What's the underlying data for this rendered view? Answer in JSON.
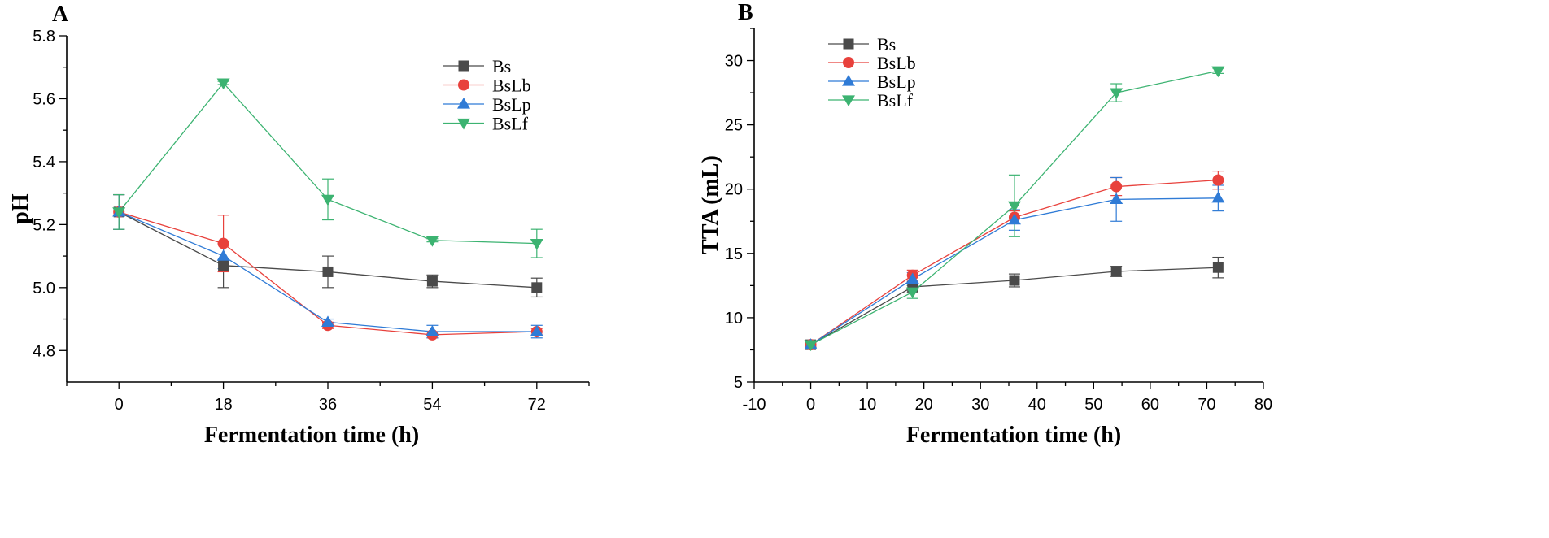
{
  "chart_data": [
    {
      "id": "A",
      "type": "line",
      "panel_label": "A",
      "title": "",
      "xlabel": "Fermentation time (h)",
      "ylabel": "pH",
      "xlim": [
        -9,
        81
      ],
      "ylim": [
        4.7,
        5.8
      ],
      "xticks": [
        0,
        18,
        36,
        54,
        72
      ],
      "xtick_labels": [
        "0",
        "18",
        "36",
        "54",
        "72"
      ],
      "yticks": [
        4.8,
        5.0,
        5.2,
        5.4,
        5.6,
        5.8
      ],
      "ytick_labels": [
        "4.8",
        "5.0",
        "5.2",
        "5.4",
        "5.6",
        "5.8"
      ],
      "legend_position": "top-right",
      "series": [
        {
          "name": "Bs",
          "color": "#4a4a4a",
          "marker": "square",
          "x": [
            0,
            18,
            36,
            54,
            72
          ],
          "values": [
            5.24,
            5.07,
            5.05,
            5.02,
            5.0
          ],
          "err": [
            0.055,
            0.07,
            0.05,
            0.02,
            0.03
          ]
        },
        {
          "name": "BsLb",
          "color": "#e8413c",
          "marker": "circle",
          "x": [
            0,
            18,
            36,
            54,
            72
          ],
          "values": [
            5.24,
            5.14,
            4.88,
            4.85,
            4.86
          ],
          "err": [
            0.055,
            0.09,
            0.01,
            0.01,
            0.01
          ]
        },
        {
          "name": "BsLp",
          "color": "#2f7bd6",
          "marker": "triangle-up",
          "x": [
            0,
            18,
            36,
            54,
            72
          ],
          "values": [
            5.24,
            5.1,
            4.89,
            4.86,
            4.86
          ],
          "err": [
            0.055,
            0.04,
            0.01,
            0.02,
            0.02
          ]
        },
        {
          "name": "BsLf",
          "color": "#3cb371",
          "marker": "triangle-down",
          "x": [
            0,
            18,
            36,
            54,
            72
          ],
          "values": [
            5.24,
            5.65,
            5.28,
            5.15,
            5.14
          ],
          "err": [
            0.055,
            0.005,
            0.065,
            0.005,
            0.045
          ]
        }
      ]
    },
    {
      "id": "B",
      "type": "line",
      "panel_label": "B",
      "title": "",
      "xlabel": "Fermentation time (h)",
      "ylabel": "TTA (mL)",
      "xlim": [
        -10,
        80
      ],
      "ylim": [
        5,
        32.5
      ],
      "xticks": [
        -10,
        0,
        10,
        20,
        30,
        40,
        50,
        60,
        70,
        80
      ],
      "xtick_labels": [
        "-10",
        "0",
        "10",
        "20",
        "30",
        "40",
        "50",
        "60",
        "70",
        "80"
      ],
      "yticks": [
        5,
        10,
        15,
        20,
        25,
        30
      ],
      "ytick_labels": [
        "5",
        "10",
        "15",
        "20",
        "25",
        "30"
      ],
      "legend_position": "top-left",
      "series": [
        {
          "name": "Bs",
          "color": "#4a4a4a",
          "marker": "square",
          "x": [
            0,
            18,
            36,
            54,
            72
          ],
          "values": [
            7.9,
            12.4,
            12.9,
            13.6,
            13.9
          ],
          "err": [
            0.2,
            0.4,
            0.5,
            0.4,
            0.8
          ]
        },
        {
          "name": "BsLb",
          "color": "#e8413c",
          "marker": "circle",
          "x": [
            0,
            18,
            36,
            54,
            72
          ],
          "values": [
            7.9,
            13.3,
            17.8,
            20.2,
            20.7
          ],
          "err": [
            0.2,
            0.4,
            0.5,
            0.7,
            0.7
          ]
        },
        {
          "name": "BsLp",
          "color": "#2f7bd6",
          "marker": "triangle-up",
          "x": [
            0,
            18,
            36,
            54,
            72
          ],
          "values": [
            7.9,
            13.0,
            17.6,
            19.2,
            19.3
          ],
          "err": [
            0.2,
            0.5,
            0.8,
            1.7,
            1.0
          ]
        },
        {
          "name": "BsLf",
          "color": "#3cb371",
          "marker": "triangle-down",
          "x": [
            0,
            18,
            36,
            54,
            72
          ],
          "values": [
            7.9,
            12.0,
            18.7,
            27.5,
            29.2
          ],
          "err": [
            0.2,
            0.5,
            2.4,
            0.7,
            0.2
          ]
        }
      ]
    }
  ]
}
